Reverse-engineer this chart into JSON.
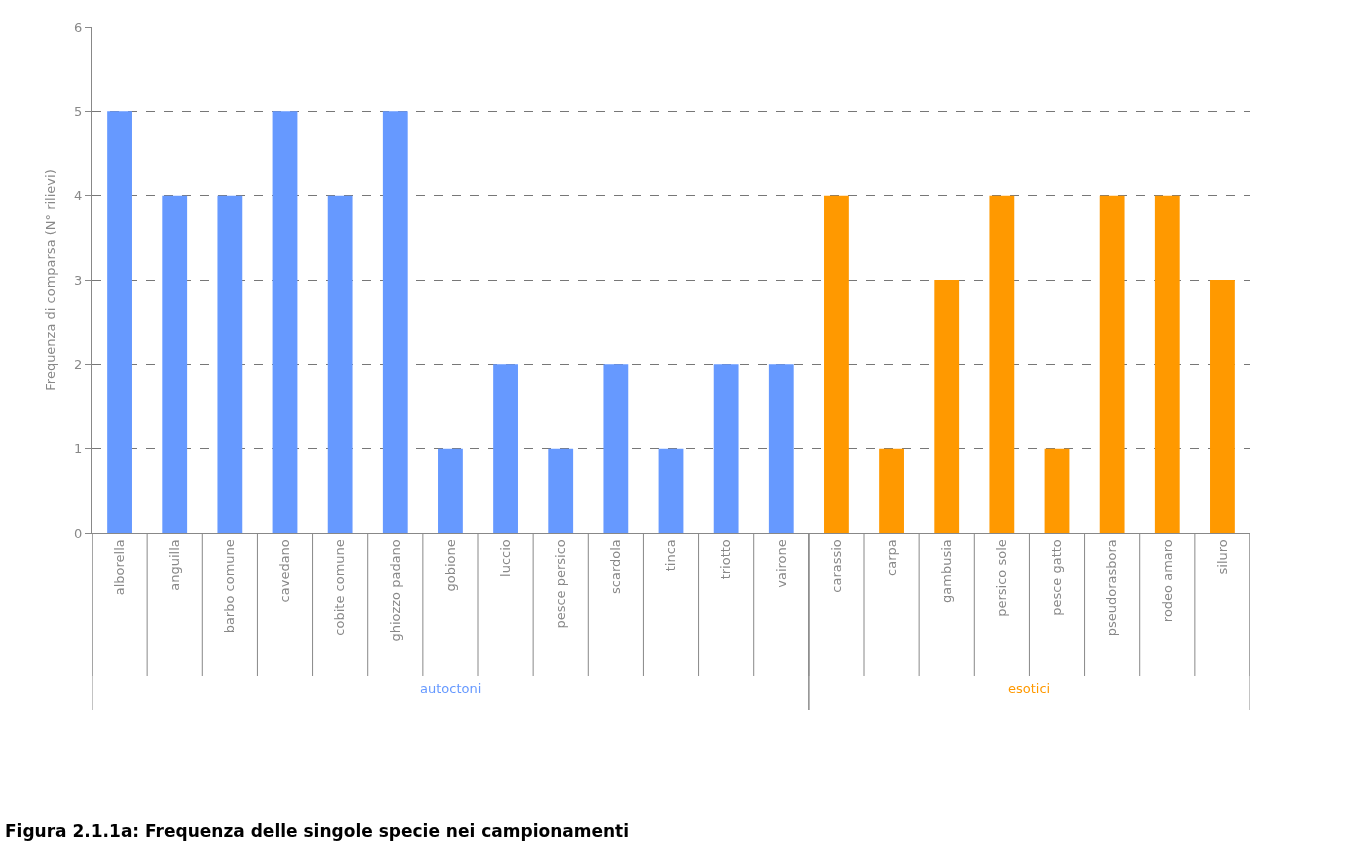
{
  "chart_data": {
    "type": "bar",
    "title": "Figura 2.1.1a: Frequenza delle singole specie nei campionamenti",
    "ylabel": "Frequenza di comparsa (N° rilievi)",
    "categories": [
      "alborella",
      "anguilla",
      "barbo comune",
      "cavedano",
      "cobite comune",
      "ghiozzo padano",
      "gobione",
      "luccio",
      "pesce persico",
      "scardola",
      "tinca",
      "triotto",
      "vairone",
      "carassio",
      "carpa",
      "gambusia",
      "persico sole",
      "pesce gatto",
      "pseudorasbora",
      "rodeo amaro",
      "siluro"
    ],
    "series": [
      {
        "name": "autoctoni",
        "color": "#6699ff",
        "values": [
          5,
          4,
          4,
          5,
          4,
          5,
          1,
          2,
          1,
          2,
          1,
          2,
          2,
          null,
          null,
          null,
          null,
          null,
          null,
          null,
          null
        ]
      },
      {
        "name": "esotici",
        "color": "#ff9900",
        "values": [
          null,
          null,
          null,
          null,
          null,
          null,
          null,
          null,
          null,
          null,
          null,
          null,
          null,
          4,
          1,
          3,
          4,
          1,
          4,
          4,
          3
        ]
      }
    ],
    "ylim": [
      0,
      6
    ],
    "yticks": [
      0,
      1,
      2,
      3,
      4,
      5,
      6
    ],
    "grid": "y",
    "legend": false
  }
}
